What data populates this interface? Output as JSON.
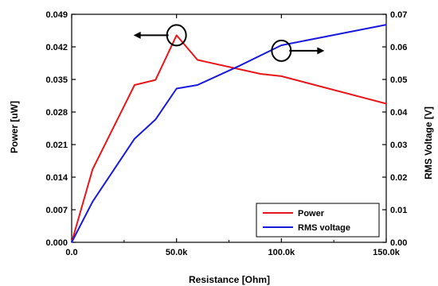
{
  "chart_data": {
    "type": "line",
    "xlabel": "Resistance [Ohm]",
    "ylabel_left": "Power [uW]",
    "ylabel_right": "RMS Voltage [V]",
    "xlim": [
      0,
      150000
    ],
    "ylim_left": [
      0,
      0.049
    ],
    "ylim_right": [
      0,
      0.07
    ],
    "x_ticks": [
      0,
      50000,
      100000,
      150000
    ],
    "x_tick_labels": [
      "0.0",
      "50.0k",
      "100.0k",
      "150.0k"
    ],
    "y_left_ticks": [
      0.0,
      0.007,
      0.014,
      0.021,
      0.028,
      0.035,
      0.042,
      0.049
    ],
    "y_left_tick_labels": [
      "0.000",
      "0.007",
      "0.014",
      "0.021",
      "0.028",
      "0.035",
      "0.042",
      "0.049"
    ],
    "y_right_ticks": [
      0.0,
      0.01,
      0.02,
      0.03,
      0.04,
      0.05,
      0.06,
      0.07
    ],
    "y_right_tick_labels": [
      "0.00",
      "0.01",
      "0.02",
      "0.03",
      "0.04",
      "0.05",
      "0.06",
      "0.07"
    ],
    "legend_position": "bottom-right",
    "grid": false,
    "series": [
      {
        "name": "Power",
        "axis": "left",
        "color": "#e8161b",
        "x": [
          0,
          10000,
          30000,
          40000,
          50000,
          60000,
          90000,
          100000,
          150000
        ],
        "y": [
          0.0,
          0.0157,
          0.0338,
          0.0349,
          0.0445,
          0.0392,
          0.0362,
          0.0357,
          0.0298
        ]
      },
      {
        "name": "RMS voltage",
        "axis": "right",
        "color": "#1a1adc",
        "x": [
          0,
          10000,
          30000,
          40000,
          50000,
          60000,
          80000,
          100000,
          150000
        ],
        "y": [
          0.0,
          0.0125,
          0.0318,
          0.0377,
          0.0472,
          0.0483,
          0.0542,
          0.0605,
          0.0668
        ]
      }
    ],
    "annotations": [
      {
        "type": "circle-arrow",
        "name": "power-axis-indicator",
        "x": 50000,
        "axis": "left",
        "y": 0.0445,
        "direction": "left",
        "color": "#000000"
      },
      {
        "type": "circle-arrow",
        "name": "voltage-axis-indicator",
        "x": 100000,
        "axis": "right",
        "y": 0.0588,
        "direction": "right",
        "color": "#000000"
      }
    ]
  }
}
